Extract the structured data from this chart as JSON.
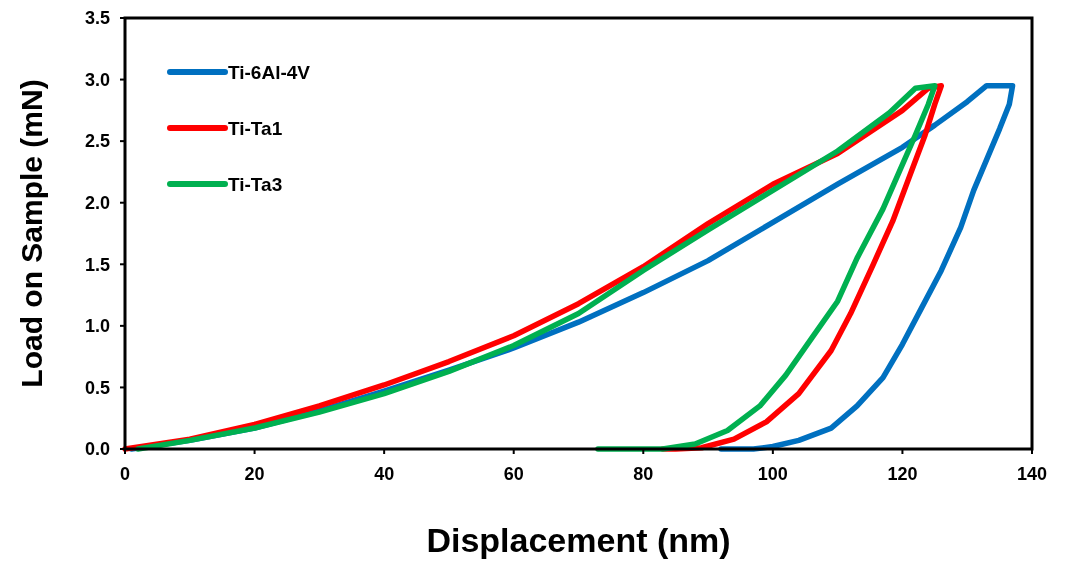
{
  "chart_data": {
    "type": "line",
    "xlabel": "Displacement (nm)",
    "ylabel": "Load on Sample (mN)",
    "xlim": [
      0,
      140
    ],
    "ylim": [
      0,
      3.5
    ],
    "xticks": [
      0,
      20,
      40,
      60,
      80,
      100,
      120,
      140
    ],
    "yticks": [
      {
        "value": 0,
        "label": "0.0"
      },
      {
        "value": 0.5,
        "label": "0.5"
      },
      {
        "value": 1,
        "label": "1.0"
      },
      {
        "value": 1.5,
        "label": "1.5"
      },
      {
        "value": 2,
        "label": "2.0"
      },
      {
        "value": 2.5,
        "label": "2.5"
      },
      {
        "value": 3,
        "label": "3.0"
      },
      {
        "value": 3.5,
        "label": "3.5"
      }
    ],
    "grid": false,
    "legend": "top left",
    "marker": "none",
    "line_style": "solid",
    "series": [
      {
        "name": "Ti-6Al-4V",
        "color": "#0070c0",
        "x": [
          1,
          10,
          20,
          30,
          40,
          50,
          60,
          70,
          80,
          90,
          100,
          110,
          120,
          125,
          130,
          133,
          137,
          136.5,
          135,
          133,
          131,
          129,
          126,
          123,
          120,
          117,
          113,
          109,
          104,
          100,
          97,
          92
        ],
        "values": [
          0,
          0.07,
          0.17,
          0.31,
          0.47,
          0.64,
          0.82,
          1.03,
          1.27,
          1.53,
          1.84,
          2.15,
          2.45,
          2.63,
          2.82,
          2.95,
          2.95,
          2.8,
          2.6,
          2.35,
          2.1,
          1.8,
          1.45,
          1.15,
          0.85,
          0.58,
          0.35,
          0.17,
          0.07,
          0.02,
          0,
          0
        ]
      },
      {
        "name": "Ti-Ta1",
        "color": "#ff0000",
        "x": [
          0,
          10,
          20,
          30,
          40,
          50,
          60,
          70,
          80,
          90,
          100,
          110,
          120,
          124,
          126,
          125,
          123.5,
          121,
          118.5,
          115.5,
          112,
          109,
          104,
          99,
          94,
          89,
          85,
          83
        ],
        "values": [
          0,
          0.08,
          0.2,
          0.35,
          0.52,
          0.71,
          0.92,
          1.18,
          1.48,
          1.83,
          2.15,
          2.4,
          2.75,
          2.93,
          2.95,
          2.8,
          2.55,
          2.2,
          1.85,
          1.5,
          1.1,
          0.8,
          0.45,
          0.22,
          0.08,
          0.01,
          0,
          0
        ]
      },
      {
        "name": "Ti-Ta3",
        "color": "#00b050",
        "x": [
          2,
          10,
          20,
          30,
          40,
          50,
          60,
          70,
          80,
          90,
          100,
          110,
          118,
          122,
          125,
          124,
          122,
          119.5,
          117,
          113,
          110,
          106,
          102,
          98,
          93,
          88,
          83,
          78,
          73
        ],
        "values": [
          0,
          0.07,
          0.17,
          0.3,
          0.45,
          0.63,
          0.84,
          1.1,
          1.45,
          1.78,
          2.1,
          2.42,
          2.73,
          2.93,
          2.95,
          2.8,
          2.55,
          2.25,
          1.95,
          1.55,
          1.2,
          0.9,
          0.6,
          0.35,
          0.15,
          0.04,
          0,
          0,
          0
        ]
      }
    ]
  }
}
